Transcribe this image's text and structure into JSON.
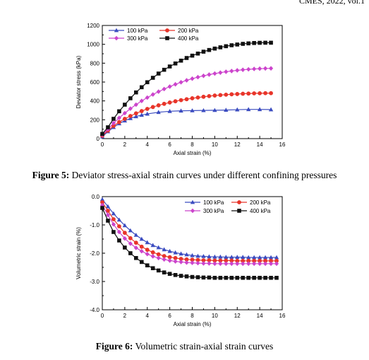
{
  "header": "CMES, 2022, vol.1",
  "figures": [
    {
      "label": "Figure 5:",
      "caption": "Deviator stress-axial strain curves under different confining pressures"
    },
    {
      "label": "Figure 6:",
      "caption": "Volumetric strain-axial strain curves"
    }
  ],
  "colors": {
    "100 kPa": "#3b4cc0",
    "200 kPa": "#e8352a",
    "300 kPa": "#cc44cc",
    "400 kPa": "#111111"
  },
  "chart_data": [
    {
      "type": "line",
      "title": "",
      "xlabel": "Axial strain (%)",
      "ylabel": "Deviator stress (kPa)",
      "xlim": [
        0,
        16
      ],
      "ylim": [
        0,
        1200
      ],
      "xticks": [
        0,
        2,
        4,
        6,
        8,
        10,
        12,
        14,
        16
      ],
      "yticks": [
        0,
        200,
        400,
        600,
        800,
        1000,
        1200
      ],
      "grid": false,
      "legend": "top-left",
      "series": [
        {
          "name": "100 kPa",
          "marker": "triangle",
          "x": [
            0,
            0.5,
            1,
            1.5,
            2,
            2.5,
            3,
            3.5,
            4,
            5,
            6,
            7,
            8,
            9,
            10,
            11,
            12,
            13,
            14,
            15
          ],
          "y": [
            20,
            75,
            120,
            160,
            190,
            215,
            235,
            250,
            262,
            280,
            290,
            295,
            297,
            299,
            301,
            303,
            307,
            310,
            310,
            308
          ]
        },
        {
          "name": "200 kPa",
          "marker": "circle",
          "x": [
            0,
            0.5,
            1,
            1.5,
            2,
            2.5,
            3,
            3.5,
            4,
            4.5,
            5,
            5.5,
            6,
            6.5,
            7,
            7.5,
            8,
            8.5,
            9,
            9.5,
            10,
            10.5,
            11,
            11.5,
            12,
            12.5,
            13,
            13.5,
            14,
            14.5,
            15
          ],
          "y": [
            30,
            85,
            135,
            175,
            210,
            240,
            268,
            292,
            315,
            335,
            353,
            369,
            383,
            396,
            408,
            418,
            428,
            436,
            444,
            451,
            457,
            462,
            466,
            470,
            473,
            476,
            478,
            480,
            481,
            482,
            482
          ]
        },
        {
          "name": "300 kPa",
          "marker": "diamond",
          "x": [
            0,
            0.5,
            1,
            1.5,
            2,
            2.5,
            3,
            3.5,
            4,
            4.5,
            5,
            5.5,
            6,
            6.5,
            7,
            7.5,
            8,
            8.5,
            9,
            9.5,
            10,
            10.5,
            11,
            11.5,
            12,
            12.5,
            13,
            13.5,
            14,
            14.5,
            15
          ],
          "y": [
            40,
            100,
            165,
            220,
            270,
            318,
            360,
            400,
            435,
            468,
            498,
            526,
            552,
            576,
            598,
            618,
            636,
            652,
            666,
            679,
            690,
            700,
            709,
            717,
            724,
            730,
            735,
            739,
            742,
            744,
            745
          ]
        },
        {
          "name": "400 kPa",
          "marker": "square",
          "x": [
            0,
            0.5,
            1,
            1.5,
            2,
            2.5,
            3,
            3.5,
            4,
            4.5,
            5,
            5.5,
            6,
            6.5,
            7,
            7.5,
            8,
            8.5,
            9,
            9.5,
            10,
            10.5,
            11,
            11.5,
            12,
            12.5,
            13,
            13.5,
            14,
            14.5,
            15
          ],
          "y": [
            50,
            120,
            210,
            290,
            360,
            428,
            490,
            545,
            598,
            645,
            690,
            730,
            765,
            797,
            827,
            855,
            880,
            902,
            922,
            940,
            955,
            968,
            980,
            990,
            998,
            1005,
            1010,
            1014,
            1016,
            1017,
            1017
          ]
        }
      ]
    },
    {
      "type": "line",
      "title": "",
      "xlabel": "Axial strain (%)",
      "ylabel": "Volumetric strain (%)",
      "xlim": [
        0,
        16
      ],
      "ylim": [
        -4.0,
        0.0
      ],
      "xticks": [
        0,
        2,
        4,
        6,
        8,
        10,
        12,
        14,
        16
      ],
      "yticks": [
        -4.0,
        -3.0,
        -2.0,
        -1.0,
        0.0
      ],
      "grid": false,
      "legend": "top-right",
      "series": [
        {
          "name": "100 kPa",
          "marker": "triangle",
          "x": [
            0,
            0.5,
            1,
            1.5,
            2,
            2.5,
            3,
            3.5,
            4,
            4.5,
            5,
            5.5,
            6,
            6.5,
            7,
            7.5,
            8,
            8.5,
            9,
            9.5,
            10,
            10.5,
            11,
            11.5,
            12,
            12.5,
            13,
            13.5,
            14,
            14.5,
            15,
            15.5
          ],
          "y": [
            -0.1,
            -0.35,
            -0.6,
            -0.82,
            -1.02,
            -1.2,
            -1.36,
            -1.5,
            -1.62,
            -1.72,
            -1.8,
            -1.87,
            -1.93,
            -1.98,
            -2.02,
            -2.05,
            -2.08,
            -2.1,
            -2.11,
            -2.12,
            -2.13,
            -2.13,
            -2.14,
            -2.14,
            -2.14,
            -2.14,
            -2.15,
            -2.15,
            -2.15,
            -2.15,
            -2.15,
            -2.15
          ]
        },
        {
          "name": "200 kPa",
          "marker": "circle",
          "x": [
            0,
            0.5,
            1,
            1.5,
            2,
            2.5,
            3,
            3.5,
            4,
            4.5,
            5,
            5.5,
            6,
            6.5,
            7,
            7.5,
            8,
            8.5,
            9,
            9.5,
            10,
            10.5,
            11,
            11.5,
            12,
            12.5,
            13,
            13.5,
            14,
            14.5,
            15,
            15.5
          ],
          "y": [
            -0.2,
            -0.5,
            -0.8,
            -1.05,
            -1.28,
            -1.47,
            -1.63,
            -1.77,
            -1.88,
            -1.97,
            -2.04,
            -2.1,
            -2.14,
            -2.17,
            -2.2,
            -2.22,
            -2.23,
            -2.24,
            -2.25,
            -2.25,
            -2.26,
            -2.26,
            -2.26,
            -2.26,
            -2.27,
            -2.27,
            -2.27,
            -2.27,
            -2.27,
            -2.27,
            -2.27,
            -2.27
          ]
        },
        {
          "name": "300 kPa",
          "marker": "diamond",
          "x": [
            0,
            0.5,
            1,
            1.5,
            2,
            2.5,
            3,
            3.5,
            4,
            4.5,
            5,
            5.5,
            6,
            6.5,
            7,
            7.5,
            8,
            8.5,
            9,
            9.5,
            10,
            10.5,
            11,
            11.5,
            12,
            12.5,
            13,
            13.5,
            14,
            14.5,
            15,
            15.5
          ],
          "y": [
            -0.3,
            -0.65,
            -0.98,
            -1.25,
            -1.48,
            -1.66,
            -1.81,
            -1.93,
            -2.03,
            -2.11,
            -2.17,
            -2.22,
            -2.26,
            -2.29,
            -2.31,
            -2.33,
            -2.34,
            -2.35,
            -2.36,
            -2.36,
            -2.37,
            -2.37,
            -2.37,
            -2.37,
            -2.37,
            -2.37,
            -2.37,
            -2.37,
            -2.37,
            -2.37,
            -2.37,
            -2.37
          ]
        },
        {
          "name": "400 kPa",
          "marker": "square",
          "x": [
            0,
            0.5,
            1,
            1.5,
            2,
            2.5,
            3,
            3.5,
            4,
            4.5,
            5,
            5.5,
            6,
            6.5,
            7,
            7.5,
            8,
            8.5,
            9,
            9.5,
            10,
            10.5,
            11,
            11.5,
            12,
            12.5,
            13,
            13.5,
            14,
            14.5,
            15,
            15.5
          ],
          "y": [
            -0.4,
            -0.85,
            -1.25,
            -1.55,
            -1.8,
            -2.0,
            -2.17,
            -2.31,
            -2.43,
            -2.53,
            -2.61,
            -2.68,
            -2.73,
            -2.77,
            -2.8,
            -2.82,
            -2.84,
            -2.85,
            -2.86,
            -2.86,
            -2.87,
            -2.87,
            -2.87,
            -2.87,
            -2.87,
            -2.87,
            -2.87,
            -2.87,
            -2.87,
            -2.87,
            -2.87,
            -2.87
          ]
        }
      ]
    }
  ]
}
